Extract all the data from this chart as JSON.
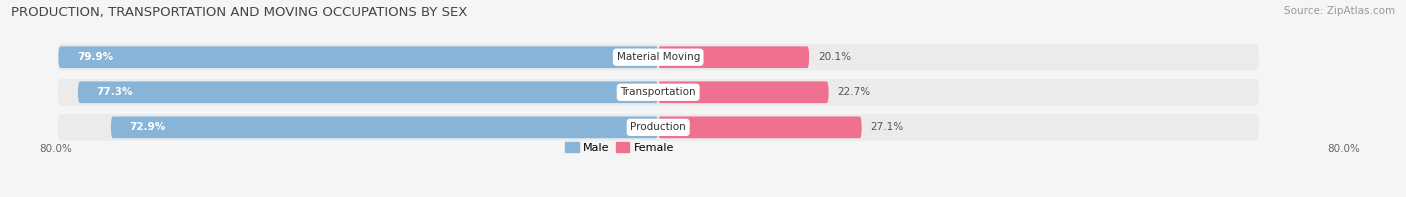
{
  "title": "PRODUCTION, TRANSPORTATION AND MOVING OCCUPATIONS BY SEX",
  "source": "Source: ZipAtlas.com",
  "categories": [
    "Material Moving",
    "Transportation",
    "Production"
  ],
  "male_values": [
    79.9,
    77.3,
    72.9
  ],
  "female_values": [
    20.1,
    22.7,
    27.1
  ],
  "male_color": "#88b4d8",
  "female_color": "#f07090",
  "male_label": "Male",
  "female_label": "Female",
  "axis_min": -80.0,
  "axis_max": 80.0,
  "axis_label_left": "80.0%",
  "axis_label_right": "80.0%",
  "title_fontsize": 9.5,
  "source_fontsize": 7.5,
  "bar_height": 0.62,
  "background_color": "#f5f5f5",
  "bar_track_color": "#e0e0e8",
  "row_bg_color": "#ebebeb"
}
